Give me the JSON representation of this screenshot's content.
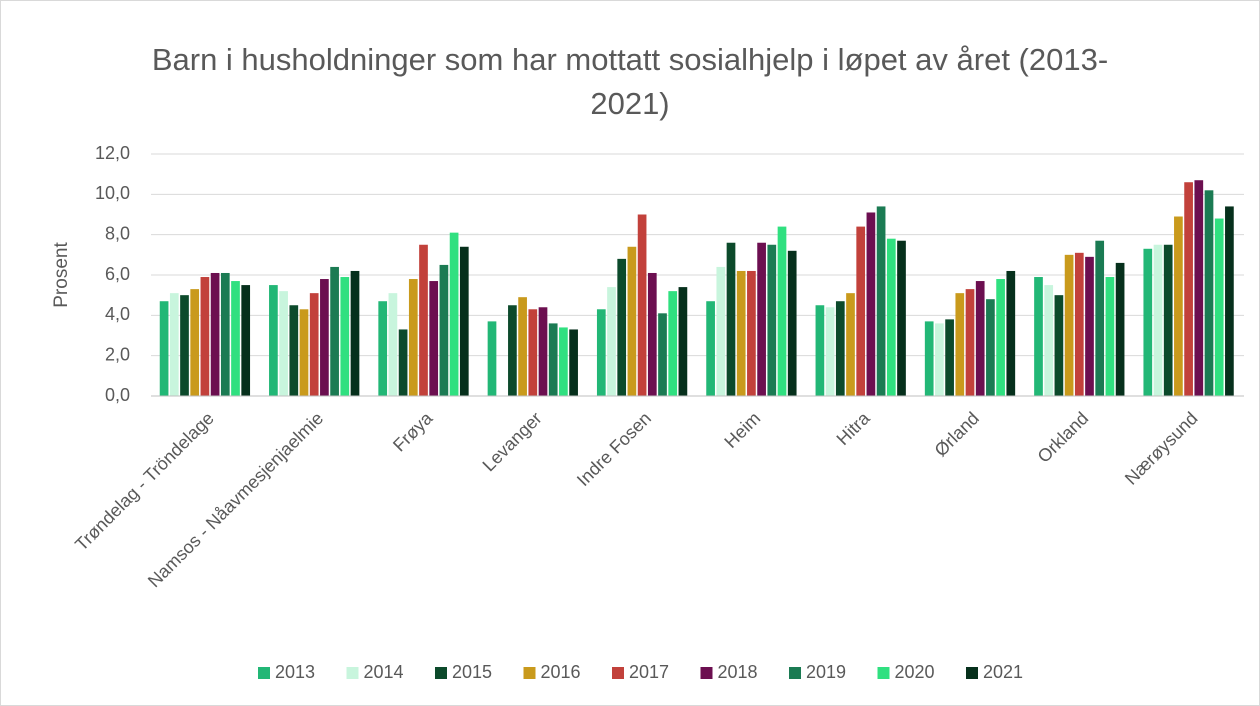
{
  "chart_data": {
    "type": "bar",
    "title": "Barn i husholdninger som har mottatt sosialhjelp i løpet av året (2013-2021)",
    "y_label": "Prosent",
    "categories": [
      "Trøndelag - Tröndelage",
      "Namsos - Nåavmesjenjaelmie",
      "Frøya",
      "Levanger",
      "Indre Fosen",
      "Heim",
      "Hitra",
      "Ørland",
      "Orkland",
      "Nærøysund"
    ],
    "series": [
      {
        "name": "2013",
        "color": "#22b776",
        "values": [
          4.7,
          5.5,
          4.7,
          3.7,
          4.3,
          4.7,
          4.5,
          3.7,
          5.9,
          7.3
        ]
      },
      {
        "name": "2014",
        "color": "#c8f5dd",
        "values": [
          5.1,
          5.2,
          5.1,
          null,
          5.4,
          6.4,
          4.4,
          3.6,
          5.5,
          7.5
        ]
      },
      {
        "name": "2015",
        "color": "#0c4a2b",
        "values": [
          5.0,
          4.5,
          3.3,
          4.5,
          6.8,
          7.6,
          4.7,
          3.8,
          5.0,
          7.5
        ]
      },
      {
        "name": "2016",
        "color": "#c99a1c",
        "values": [
          5.3,
          4.3,
          5.8,
          4.9,
          7.4,
          6.2,
          5.1,
          5.1,
          7.0,
          8.9
        ]
      },
      {
        "name": "2017",
        "color": "#c2413b",
        "values": [
          5.9,
          5.1,
          7.5,
          4.3,
          9.0,
          6.2,
          8.4,
          5.3,
          7.1,
          10.6
        ]
      },
      {
        "name": "2018",
        "color": "#6c0f50",
        "values": [
          6.1,
          5.8,
          5.7,
          4.4,
          6.1,
          7.6,
          9.1,
          5.7,
          6.9,
          10.7
        ]
      },
      {
        "name": "2019",
        "color": "#1b7b53",
        "values": [
          6.1,
          6.4,
          6.5,
          3.6,
          4.1,
          7.5,
          9.4,
          4.8,
          7.7,
          10.2
        ]
      },
      {
        "name": "2020",
        "color": "#30e080",
        "values": [
          5.7,
          5.9,
          8.1,
          3.4,
          5.2,
          8.4,
          7.8,
          5.8,
          5.9,
          8.8
        ]
      },
      {
        "name": "2021",
        "color": "#06301c",
        "values": [
          5.5,
          6.2,
          7.4,
          3.3,
          5.4,
          7.2,
          7.7,
          6.2,
          6.6,
          9.4
        ]
      }
    ],
    "ylim": [
      0,
      12
    ],
    "yticks": [
      {
        "value": 0,
        "label": "0,0"
      },
      {
        "value": 2,
        "label": "2,0"
      },
      {
        "value": 4,
        "label": "4,0"
      },
      {
        "value": 6,
        "label": "6,0"
      },
      {
        "value": 8,
        "label": "8,0"
      },
      {
        "value": 10,
        "label": "10,0"
      },
      {
        "value": 12,
        "label": "12,0"
      }
    ],
    "grid": true,
    "legend": "bottom"
  }
}
